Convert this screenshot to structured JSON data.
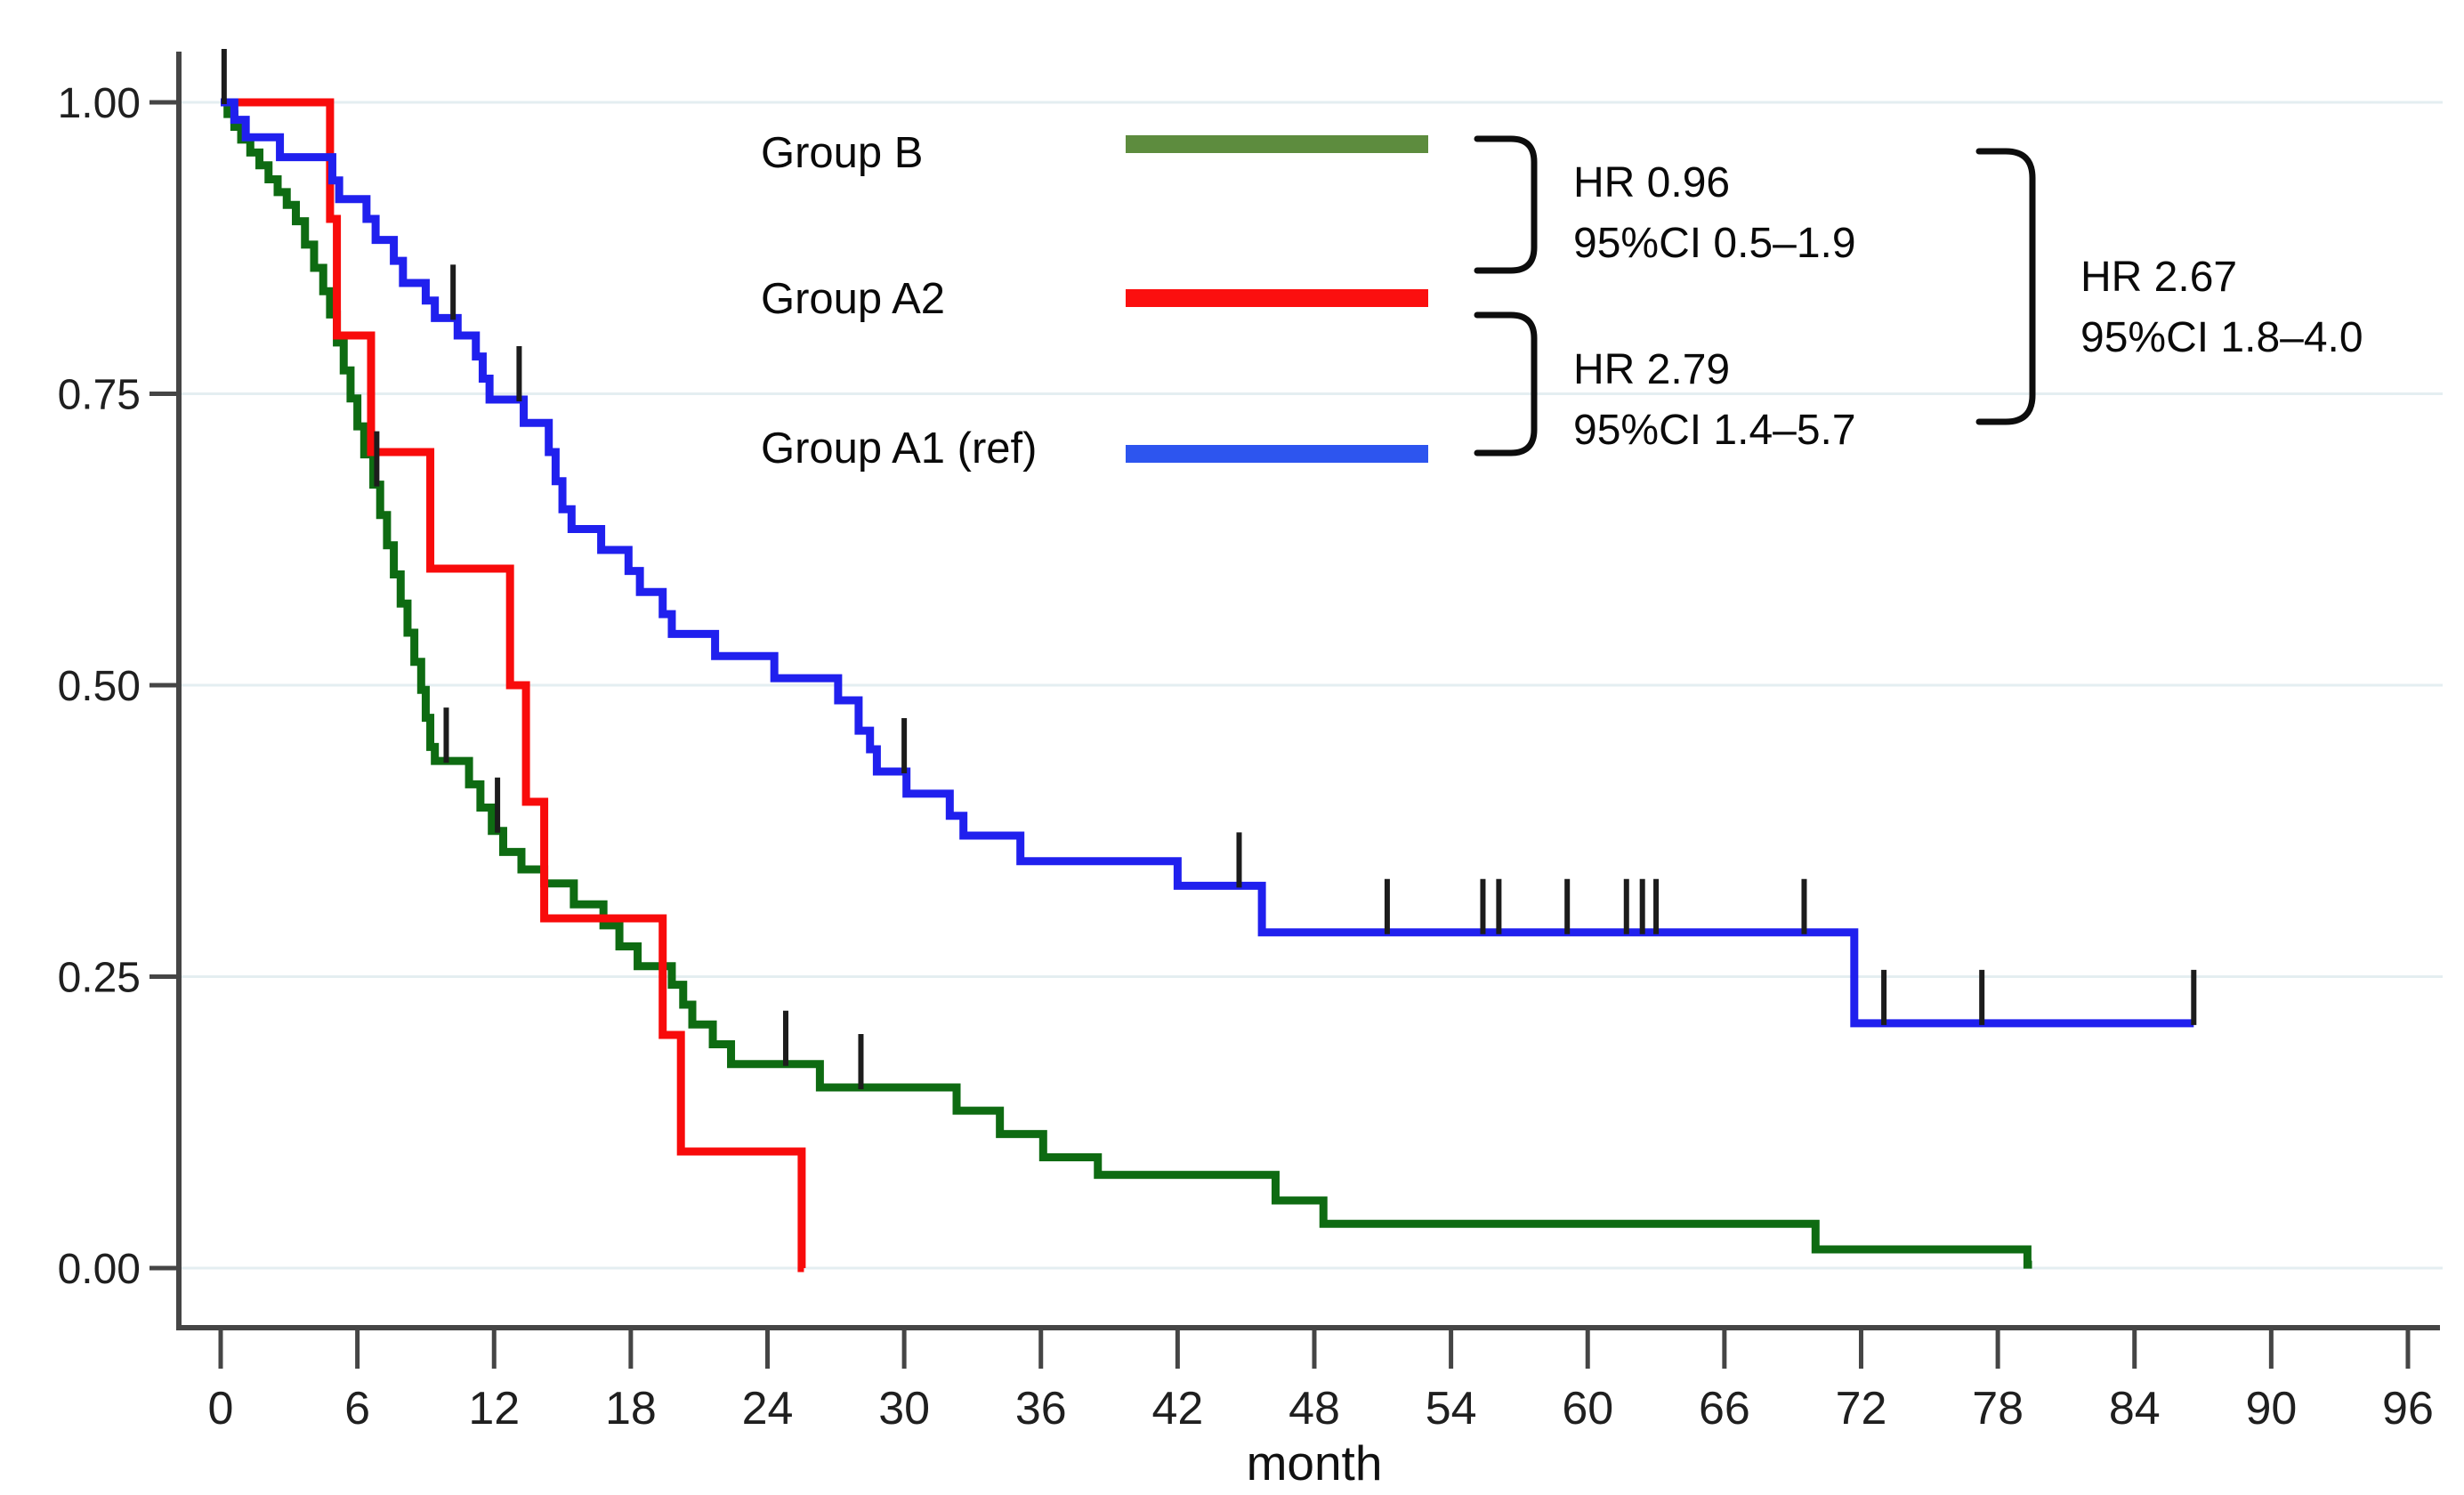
{
  "figure": {
    "background": "#ffffff"
  },
  "axes": {
    "x": {
      "label": "month",
      "ticks": [
        0,
        6,
        12,
        18,
        24,
        30,
        36,
        42,
        48,
        54,
        60,
        66,
        72,
        78,
        84,
        90,
        96
      ],
      "min": 0,
      "max": 96
    },
    "y": {
      "tick_labels": [
        "1.00",
        "0.75",
        "0.50",
        "0.25",
        "0.00"
      ],
      "tick_values": [
        1.0,
        0.75,
        0.5,
        0.25,
        0.0
      ],
      "min": 0,
      "max": 1
    }
  },
  "legend": {
    "items": [
      {
        "label": "Group B",
        "color": "#5d8c3e"
      },
      {
        "label": "Group A2",
        "color": "#fb0f0f"
      },
      {
        "label": "Group A1 (ref)",
        "color": "#2d55ef"
      }
    ]
  },
  "annotations": [
    {
      "line1": "HR 0.96",
      "line2": "95%CI 0.5–1.9"
    },
    {
      "line1": "HR 2.79",
      "line2": "95%CI 1.4–5.7"
    },
    {
      "line1": "HR 2.67",
      "line2": "95%CI 1.8–4.0"
    }
  ],
  "chart_data": {
    "type": "line",
    "subtype": "kaplan-meier-step",
    "title": "",
    "xlabel": "month",
    "ylabel": "",
    "xlim": [
      0,
      96
    ],
    "ylim": [
      0,
      1
    ],
    "grid": "horizontal",
    "layout": {
      "grid_color": "#e4eef1",
      "axis_color": "#454545",
      "tick_text_color": "#1f1f1f",
      "censor_color": "#1c1c1c",
      "bracket_color": "#0d0d0d"
    },
    "series": [
      {
        "name": "Group B",
        "color": "#0e6b12",
        "end": 79.5,
        "end_censor": false,
        "points": [
          [
            0,
            1.0
          ],
          [
            0.3,
            0.99
          ],
          [
            0.6,
            0.979
          ],
          [
            0.9,
            0.968
          ],
          [
            1.3,
            0.957
          ],
          [
            1.7,
            0.946
          ],
          [
            2.1,
            0.934
          ],
          [
            2.5,
            0.923
          ],
          [
            2.9,
            0.912
          ],
          [
            3.3,
            0.898
          ],
          [
            3.7,
            0.878
          ],
          [
            4.1,
            0.858
          ],
          [
            4.5,
            0.838
          ],
          [
            4.8,
            0.818
          ],
          [
            5.1,
            0.794
          ],
          [
            5.4,
            0.77
          ],
          [
            5.7,
            0.746
          ],
          [
            6.0,
            0.722
          ],
          [
            6.3,
            0.698
          ],
          [
            6.7,
            0.672
          ],
          [
            7.0,
            0.646
          ],
          [
            7.3,
            0.62
          ],
          [
            7.6,
            0.595
          ],
          [
            7.9,
            0.57
          ],
          [
            8.2,
            0.545
          ],
          [
            8.5,
            0.52
          ],
          [
            8.8,
            0.496
          ],
          [
            9.0,
            0.472
          ],
          [
            9.2,
            0.447
          ],
          [
            9.4,
            0.435
          ],
          [
            10.9,
            0.415
          ],
          [
            11.4,
            0.395
          ],
          [
            11.9,
            0.375
          ],
          [
            12.4,
            0.357
          ],
          [
            13.2,
            0.342
          ],
          [
            14.2,
            0.33
          ],
          [
            15.5,
            0.312
          ],
          [
            16.8,
            0.294
          ],
          [
            17.5,
            0.276
          ],
          [
            18.3,
            0.259
          ],
          [
            19.8,
            0.243
          ],
          [
            20.3,
            0.226
          ],
          [
            20.7,
            0.209
          ],
          [
            21.6,
            0.192
          ],
          [
            22.4,
            0.175
          ],
          [
            26.3,
            0.155
          ],
          [
            32.3,
            0.135
          ],
          [
            34.2,
            0.115
          ],
          [
            36.1,
            0.095
          ],
          [
            38.5,
            0.08
          ],
          [
            46.3,
            0.058
          ],
          [
            48.4,
            0.038
          ],
          [
            70.0,
            0.016
          ],
          [
            79.3,
            0.003
          ]
        ],
        "censors": [
          [
            6.85,
            0.672
          ],
          [
            9.9,
            0.435
          ],
          [
            12.15,
            0.375
          ],
          [
            24.8,
            0.175
          ],
          [
            28.1,
            0.155
          ]
        ]
      },
      {
        "name": "Group A2",
        "color": "#f80b0b",
        "end": 25.6,
        "end_censor": false,
        "points": [
          [
            0,
            1.0
          ],
          [
            4.8,
            0.9
          ],
          [
            5.1,
            0.8
          ],
          [
            6.6,
            0.7
          ],
          [
            9.2,
            0.6
          ],
          [
            12.7,
            0.5
          ],
          [
            13.4,
            0.4
          ],
          [
            14.2,
            0.3
          ],
          [
            19.4,
            0.2
          ],
          [
            20.2,
            0.1
          ],
          [
            25.5,
            0.0
          ]
        ],
        "censors": []
      },
      {
        "name": "Group A1 (ref)",
        "color": "#2020ee",
        "end": 86.6,
        "end_censor": true,
        "points": [
          [
            0,
            1.0
          ],
          [
            0.6,
            0.985
          ],
          [
            1.1,
            0.97
          ],
          [
            2.6,
            0.953
          ],
          [
            4.9,
            0.933
          ],
          [
            5.2,
            0.917
          ],
          [
            6.4,
            0.9
          ],
          [
            6.8,
            0.882
          ],
          [
            7.6,
            0.864
          ],
          [
            8.0,
            0.845
          ],
          [
            9.0,
            0.83
          ],
          [
            9.4,
            0.815
          ],
          [
            10.4,
            0.8
          ],
          [
            11.2,
            0.782
          ],
          [
            11.5,
            0.763
          ],
          [
            11.8,
            0.745
          ],
          [
            13.3,
            0.725
          ],
          [
            14.4,
            0.7
          ],
          [
            14.7,
            0.675
          ],
          [
            15.0,
            0.651
          ],
          [
            15.4,
            0.634
          ],
          [
            16.7,
            0.616
          ],
          [
            17.9,
            0.598
          ],
          [
            18.4,
            0.58
          ],
          [
            19.4,
            0.561
          ],
          [
            19.8,
            0.544
          ],
          [
            21.7,
            0.525
          ],
          [
            24.3,
            0.506
          ],
          [
            27.1,
            0.487
          ],
          [
            28.0,
            0.461
          ],
          [
            28.5,
            0.445
          ],
          [
            28.8,
            0.426
          ],
          [
            30.1,
            0.407
          ],
          [
            32.0,
            0.388
          ],
          [
            32.6,
            0.371
          ],
          [
            35.1,
            0.349
          ],
          [
            42.0,
            0.328
          ],
          [
            45.7,
            0.288
          ],
          [
            71.7,
            0.21
          ]
        ],
        "censors": [
          [
            0.15,
            1.0
          ],
          [
            10.2,
            0.815
          ],
          [
            13.1,
            0.745
          ],
          [
            30.0,
            0.426
          ],
          [
            44.7,
            0.328
          ],
          [
            51.2,
            0.288
          ],
          [
            55.4,
            0.288
          ],
          [
            56.1,
            0.288
          ],
          [
            59.1,
            0.288
          ],
          [
            61.7,
            0.288
          ],
          [
            62.4,
            0.288
          ],
          [
            63.0,
            0.288
          ],
          [
            69.5,
            0.288
          ],
          [
            73.0,
            0.21
          ],
          [
            77.3,
            0.21
          ]
        ]
      }
    ]
  }
}
